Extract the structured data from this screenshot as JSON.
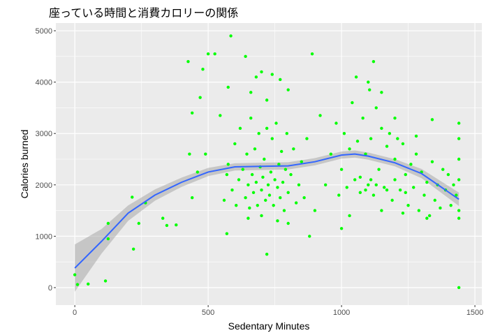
{
  "chart_data": {
    "type": "scatter",
    "title": "座っている時間と消費カロリーの関係",
    "xlabel": "Sedentary Minutes",
    "ylabel": "Calories burned",
    "xlim": [
      -71,
      1526
    ],
    "ylim": [
      -340,
      5150
    ],
    "xticks": [
      0,
      500,
      1000,
      1500
    ],
    "yticks": [
      0,
      1000,
      2000,
      3000,
      4000,
      5000
    ],
    "grid": true,
    "colors": {
      "points": "#00FF00",
      "smooth": "#3366FF",
      "band": "#999999",
      "panel": "#EBEBEB"
    },
    "points": [
      [
        0,
        250
      ],
      [
        10,
        60
      ],
      [
        50,
        70
      ],
      [
        115,
        130
      ],
      [
        125,
        1250
      ],
      [
        125,
        950
      ],
      [
        220,
        750
      ],
      [
        215,
        1760
      ],
      [
        240,
        1250
      ],
      [
        265,
        1650
      ],
      [
        330,
        1350
      ],
      [
        345,
        1210
      ],
      [
        380,
        1220
      ],
      [
        425,
        4400
      ],
      [
        440,
        3400
      ],
      [
        430,
        2600
      ],
      [
        440,
        1750
      ],
      [
        460,
        2250
      ],
      [
        470,
        3700
      ],
      [
        480,
        4250
      ],
      [
        490,
        2600
      ],
      [
        500,
        4550
      ],
      [
        525,
        4550
      ],
      [
        545,
        3350
      ],
      [
        570,
        1050
      ],
      [
        570,
        2200
      ],
      [
        575,
        3900
      ],
      [
        585,
        4900
      ],
      [
        640,
        4500
      ],
      [
        720,
        650
      ],
      [
        880,
        1000
      ],
      [
        890,
        4550
      ],
      [
        1120,
        4400
      ],
      [
        1440,
        0
      ],
      [
        1440,
        3200
      ],
      [
        1440,
        1350
      ],
      [
        1340,
        3270
      ],
      [
        560,
        1700
      ],
      [
        575,
        2400
      ],
      [
        590,
        1900
      ],
      [
        600,
        2800
      ],
      [
        605,
        1600
      ],
      [
        615,
        2100
      ],
      [
        620,
        3100
      ],
      [
        630,
        2300
      ],
      [
        640,
        1750
      ],
      [
        645,
        2600
      ],
      [
        650,
        2000
      ],
      [
        655,
        1550
      ],
      [
        660,
        3300
      ],
      [
        665,
        2200
      ],
      [
        670,
        1850
      ],
      [
        675,
        2700
      ],
      [
        680,
        2050
      ],
      [
        685,
        1600
      ],
      [
        690,
        3000
      ],
      [
        695,
        2350
      ],
      [
        700,
        1900
      ],
      [
        705,
        2150
      ],
      [
        710,
        2500
      ],
      [
        715,
        1700
      ],
      [
        720,
        3100
      ],
      [
        725,
        2000
      ],
      [
        730,
        1800
      ],
      [
        735,
        2250
      ],
      [
        740,
        2900
      ],
      [
        745,
        1600
      ],
      [
        750,
        2100
      ],
      [
        755,
        3200
      ],
      [
        760,
        1950
      ],
      [
        765,
        2400
      ],
      [
        770,
        1750
      ],
      [
        775,
        2650
      ],
      [
        780,
        2050
      ],
      [
        785,
        1500
      ],
      [
        790,
        2300
      ],
      [
        795,
        3000
      ],
      [
        800,
        1850
      ],
      [
        810,
        2200
      ],
      [
        820,
        2700
      ],
      [
        830,
        1650
      ],
      [
        840,
        2000
      ],
      [
        850,
        2450
      ],
      [
        860,
        1750
      ],
      [
        870,
        2900
      ],
      [
        680,
        4100
      ],
      [
        700,
        4200
      ],
      [
        740,
        4150
      ],
      [
        770,
        4050
      ],
      [
        660,
        3800
      ],
      [
        720,
        3650
      ],
      [
        800,
        3850
      ],
      [
        650,
        1350
      ],
      [
        700,
        1400
      ],
      [
        760,
        1300
      ],
      [
        800,
        1250
      ],
      [
        900,
        1500
      ],
      [
        920,
        3350
      ],
      [
        940,
        2000
      ],
      [
        960,
        2600
      ],
      [
        980,
        3200
      ],
      [
        990,
        1800
      ],
      [
        1000,
        2300
      ],
      [
        1010,
        3000
      ],
      [
        1020,
        1950
      ],
      [
        1030,
        2700
      ],
      [
        1040,
        3600
      ],
      [
        1050,
        2100
      ],
      [
        1055,
        4100
      ],
      [
        1060,
        2850
      ],
      [
        1070,
        1850
      ],
      [
        1080,
        3300
      ],
      [
        1090,
        2600
      ],
      [
        1100,
        2000
      ],
      [
        1105,
        3850
      ],
      [
        1110,
        2900
      ],
      [
        1120,
        1800
      ],
      [
        1130,
        3500
      ],
      [
        1140,
        2300
      ],
      [
        1150,
        3100
      ],
      [
        1160,
        1950
      ],
      [
        1170,
        2750
      ],
      [
        1180,
        3000
      ],
      [
        1190,
        1700
      ],
      [
        1200,
        2500
      ],
      [
        1210,
        2900
      ],
      [
        1220,
        1900
      ],
      [
        1230,
        2800
      ],
      [
        1240,
        2200
      ],
      [
        1250,
        1600
      ],
      [
        1260,
        2400
      ],
      [
        1270,
        1950
      ],
      [
        1280,
        2600
      ],
      [
        1290,
        1500
      ],
      [
        1300,
        2250
      ],
      [
        1310,
        1800
      ],
      [
        1320,
        2050
      ],
      [
        1330,
        1400
      ],
      [
        1340,
        2450
      ],
      [
        1350,
        1700
      ],
      [
        1360,
        2000
      ],
      [
        1370,
        1550
      ],
      [
        1380,
        2300
      ],
      [
        1390,
        1900
      ],
      [
        1400,
        2200
      ],
      [
        1410,
        1600
      ],
      [
        1420,
        2000
      ],
      [
        1430,
        1800
      ],
      [
        1440,
        2100
      ],
      [
        1440,
        1500
      ],
      [
        1440,
        2500
      ],
      [
        1440,
        2900
      ],
      [
        1030,
        1400
      ],
      [
        1150,
        1500
      ],
      [
        1070,
        2150
      ],
      [
        1090,
        1900
      ],
      [
        1110,
        2100
      ],
      [
        1130,
        2000
      ],
      [
        1170,
        1900
      ],
      [
        1200,
        2100
      ],
      [
        1240,
        1850
      ],
      [
        1100,
        4000
      ],
      [
        1150,
        3800
      ],
      [
        1200,
        3300
      ],
      [
        1280,
        2950
      ],
      [
        1230,
        1450
      ],
      [
        1320,
        1350
      ],
      [
        1000,
        1150
      ]
    ],
    "smooth": {
      "x": [
        0,
        100,
        200,
        300,
        400,
        500,
        600,
        700,
        800,
        900,
        1000,
        1050,
        1100,
        1200,
        1300,
        1440
      ],
      "y": [
        380,
        900,
        1450,
        1800,
        2050,
        2250,
        2350,
        2360,
        2370,
        2450,
        2580,
        2600,
        2560,
        2430,
        2220,
        1720
      ],
      "lower": [
        -80,
        660,
        1300,
        1690,
        1960,
        2170,
        2280,
        2290,
        2300,
        2380,
        2510,
        2530,
        2490,
        2360,
        2130,
        1590
      ],
      "upper": [
        840,
        1140,
        1600,
        1910,
        2140,
        2330,
        2420,
        2430,
        2440,
        2520,
        2650,
        2670,
        2630,
        2500,
        2310,
        1850
      ]
    }
  }
}
